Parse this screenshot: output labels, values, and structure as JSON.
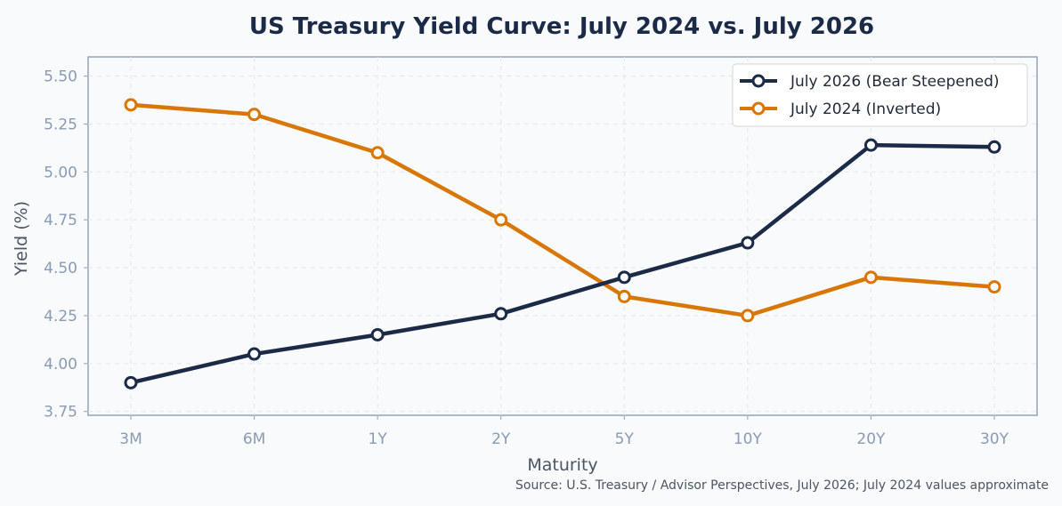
{
  "chart_data": {
    "type": "line",
    "title": "US Treasury Yield Curve: July 2024 vs. July 2026",
    "xlabel": "Maturity",
    "ylabel": "Yield (%)",
    "categories": [
      "3M",
      "6M",
      "1Y",
      "2Y",
      "5Y",
      "10Y",
      "20Y",
      "30Y"
    ],
    "ylim": [
      3.73,
      5.6
    ],
    "yticks": [
      "3.75",
      "4.00",
      "4.25",
      "4.50",
      "4.75",
      "5.00",
      "5.25",
      "5.50"
    ],
    "grid": true,
    "legend_position": "top-right",
    "series": [
      {
        "name": "July 2026 (Bear Steepened)",
        "color": "#1b2a47",
        "values": [
          3.9,
          4.05,
          4.15,
          4.26,
          4.45,
          4.63,
          5.14,
          5.13
        ]
      },
      {
        "name": "July 2024 (Inverted)",
        "color": "#d97706",
        "values": [
          5.35,
          5.3,
          5.1,
          4.75,
          4.35,
          4.25,
          4.45,
          4.4
        ]
      }
    ],
    "source": "Source: U.S. Treasury / Advisor Perspectives, July 2026; July 2024 values approximate"
  }
}
